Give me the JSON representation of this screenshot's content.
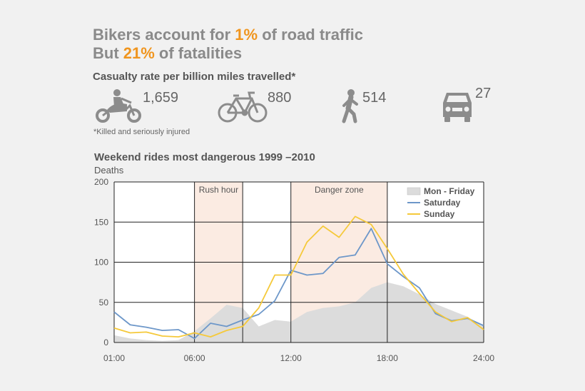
{
  "headline": {
    "line1_pre": "Bikers account for ",
    "line1_hl": "1%",
    "line1_post": " of road traffic",
    "line2_pre": "But ",
    "line2_hl": "21%",
    "line2_post": " of fatalities"
  },
  "subtitle": "Casualty rate per billion miles travelled*",
  "stats": [
    {
      "icon": "motorcycle-icon",
      "value": "1,659"
    },
    {
      "icon": "bicycle-icon",
      "value": "880"
    },
    {
      "icon": "pedestrian-icon",
      "value": "514"
    },
    {
      "icon": "car-icon",
      "value": "27"
    }
  ],
  "footnote": "*Killed and seriously injured",
  "colors": {
    "highlight": "#f0951e",
    "saturday": "#6d97c9",
    "sunday": "#f5c93a",
    "weekday_area": "#dcdcdc",
    "zone_fill": "#fbebe2",
    "icon": "#8c8c8c"
  },
  "chart_data": {
    "type": "line",
    "title": "Weekend rides most dangerous 1999 –2010",
    "ylabel": "Deaths",
    "xlabel": "",
    "ylim": [
      0,
      200
    ],
    "yticks": [
      0,
      50,
      100,
      150,
      200
    ],
    "xlim": [
      0,
      23
    ],
    "xticks": [
      {
        "x": 0,
        "label": "01:00"
      },
      {
        "x": 5,
        "label": "06:00"
      },
      {
        "x": 11,
        "label": "12:00"
      },
      {
        "x": 17,
        "label": "18:00"
      },
      {
        "x": 23,
        "label": "24:00"
      }
    ],
    "grid": true,
    "vlines": [
      5,
      8,
      11,
      17
    ],
    "zones": [
      {
        "label": "Rush hour",
        "start": 5,
        "end": 8
      },
      {
        "label": "Danger zone",
        "start": 11,
        "end": 17
      }
    ],
    "legend_position": "top-right",
    "x": [
      0,
      1,
      2,
      3,
      4,
      5,
      6,
      7,
      8,
      9,
      10,
      11,
      12,
      13,
      14,
      15,
      16,
      17,
      18,
      19,
      20,
      21,
      22,
      23
    ],
    "series": [
      {
        "name": "Mon - Friday",
        "style": "area",
        "values": [
          9,
          5,
          3,
          2,
          3,
          14,
          30,
          47,
          43,
          20,
          28,
          26,
          38,
          43,
          45,
          50,
          68,
          75,
          70,
          60,
          48,
          40,
          32,
          20
        ]
      },
      {
        "name": "Saturday",
        "style": "line",
        "values": [
          38,
          22,
          19,
          15,
          16,
          5,
          24,
          20,
          28,
          35,
          52,
          90,
          84,
          86,
          106,
          109,
          142,
          98,
          82,
          68,
          36,
          27,
          30,
          21
        ]
      },
      {
        "name": "Sunday",
        "style": "line",
        "values": [
          18,
          12,
          13,
          8,
          7,
          12,
          7,
          15,
          20,
          43,
          84,
          84,
          125,
          145,
          131,
          157,
          147,
          117,
          85,
          61,
          38,
          26,
          31,
          16
        ]
      }
    ]
  }
}
